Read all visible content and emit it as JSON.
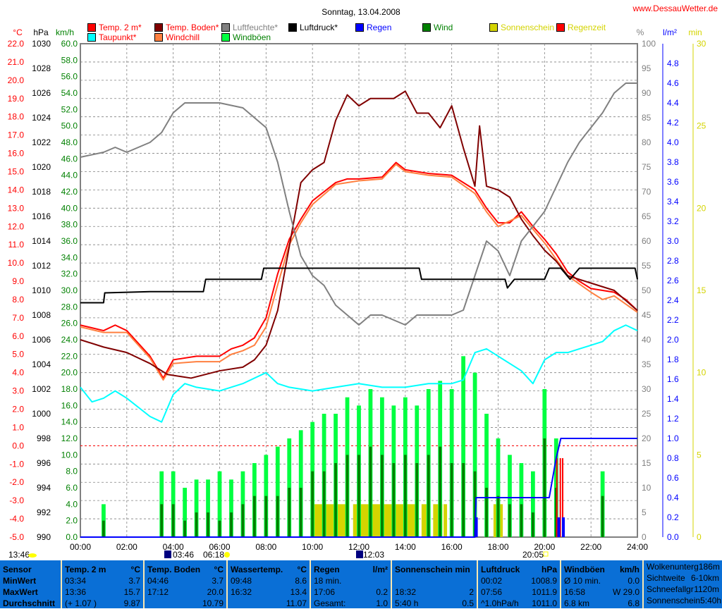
{
  "chart_data": {
    "type": "line",
    "title": "Sonntag, 13.04.2008",
    "site": "www.DessauWetter.de",
    "xlabel": "Uhrzeit",
    "xlim": [
      0,
      24
    ],
    "x_ticks": [
      "00:00",
      "02:00",
      "04:00",
      "06:00",
      "08:00",
      "10:00",
      "12:00",
      "14:00",
      "16:00",
      "18:00",
      "20:00",
      "22:00",
      "24:00"
    ],
    "axes": {
      "celsius": {
        "label": "°C",
        "range": [
          -5,
          22
        ],
        "ticks": [
          "22.0",
          "21.0",
          "20.0",
          "19.0",
          "18.0",
          "17.0",
          "16.0",
          "15.0",
          "14.0",
          "13.0",
          "12.0",
          "11.0",
          "10.0",
          "9.0",
          "8.0",
          "7.0",
          "6.0",
          "5.0",
          "4.0",
          "3.0",
          "2.0",
          "1.0",
          "0.0",
          "-1.0",
          "-2.0",
          "-3.0",
          "-4.0",
          "-5.0"
        ]
      },
      "hpa": {
        "label": "hPa",
        "range": [
          990,
          1030
        ],
        "ticks": [
          "1030",
          "1028",
          "1026",
          "1024",
          "1022",
          "1020",
          "1018",
          "1016",
          "1014",
          "1012",
          "1010",
          "1008",
          "1006",
          "1004",
          "1002",
          "1000",
          "998",
          "996",
          "994",
          "992",
          "990"
        ]
      },
      "kmh": {
        "label": "km/h",
        "range": [
          0,
          60
        ],
        "ticks": [
          "60.0",
          "58.0",
          "56.0",
          "54.0",
          "52.0",
          "50.0",
          "48.0",
          "46.0",
          "44.0",
          "42.0",
          "40.0",
          "38.0",
          "36.0",
          "34.0",
          "32.0",
          "30.0",
          "28.0",
          "26.0",
          "24.0",
          "22.0",
          "20.0",
          "18.0",
          "16.0",
          "14.0",
          "12.0",
          "10.0",
          "8.0",
          "6.0",
          "4.0",
          "2.0",
          "0.0"
        ]
      },
      "pct": {
        "label": "%",
        "range": [
          0,
          100
        ],
        "ticks": [
          "100",
          "95",
          "90",
          "85",
          "80",
          "75",
          "70",
          "65",
          "60",
          "55",
          "50",
          "45",
          "40",
          "35",
          "30",
          "25",
          "20",
          "15",
          "10",
          "5",
          "0"
        ]
      },
      "lm2": {
        "label": "l/m²",
        "range": [
          0,
          5
        ],
        "ticks": [
          "4.8",
          "4.6",
          "4.4",
          "4.2",
          "4.0",
          "3.8",
          "3.6",
          "3.4",
          "3.2",
          "3.0",
          "2.8",
          "2.6",
          "2.4",
          "2.2",
          "2.0",
          "1.8",
          "1.6",
          "1.4",
          "1.2",
          "1.0",
          "0.8",
          "0.6",
          "0.4",
          "0.2",
          "0.0"
        ]
      },
      "min": {
        "label": "min",
        "range": [
          0,
          30
        ],
        "ticks": [
          "30",
          "25",
          "20",
          "15",
          "10",
          "5",
          "0"
        ]
      }
    },
    "legend": [
      {
        "name": "Temp. 2 m*",
        "color": "#ff0000",
        "text_color": "#ff0000"
      },
      {
        "name": "Temp. Boden*",
        "color": "#800000",
        "text_color": "#ff0000"
      },
      {
        "name": "Luftfeuchte*",
        "color": "#808080",
        "text_color": "#808080"
      },
      {
        "name": "Luftdruck*",
        "color": "#000000",
        "text_color": "#000000"
      },
      {
        "name": "Regen",
        "color": "#0000ff",
        "text_color": "#0000ff"
      },
      {
        "name": "Wind",
        "color": "#008000",
        "text_color": "#008000"
      },
      {
        "name": "Sonnenschein",
        "color": "#d4d400",
        "text_color": "#d4d400"
      },
      {
        "name": "Regenzeit",
        "color": "#ff0000",
        "text_color": "#d4d400"
      },
      {
        "name": "Taupunkt*",
        "color": "#00ffff",
        "text_color": "#ff0000"
      },
      {
        "name": "Windchill",
        "color": "#ff8040",
        "text_color": "#ff0000"
      },
      {
        "name": "Windböen",
        "color": "#00ff40",
        "text_color": "#008000"
      }
    ],
    "series": [
      {
        "name": "Temp. 2 m",
        "axis": "celsius",
        "color": "#ff0000",
        "x": [
          0,
          1,
          1.5,
          2,
          3,
          3.57,
          4,
          5,
          6,
          6.5,
          7,
          7.5,
          8,
          8.5,
          9,
          9.5,
          10,
          11,
          11.5,
          12,
          13,
          13.6,
          14,
          15,
          16,
          17,
          17.5,
          18,
          18.5,
          19,
          19.5,
          20,
          20.5,
          21,
          21.5,
          22,
          23,
          23.5,
          24
        ],
        "y": [
          6.6,
          6.3,
          6.6,
          6.3,
          4.9,
          3.7,
          4.7,
          4.9,
          4.9,
          5.3,
          5.5,
          5.9,
          7.0,
          9.4,
          11.3,
          12.4,
          13.4,
          14.4,
          14.6,
          14.6,
          14.7,
          15.5,
          15.1,
          14.9,
          14.8,
          14.0,
          13.0,
          12.2,
          12.2,
          12.8,
          12.0,
          11.3,
          10.5,
          9.5,
          9.0,
          8.6,
          8.4,
          8.0,
          7.4
        ]
      },
      {
        "name": "Windchill",
        "axis": "celsius",
        "color": "#ff8040",
        "x": [
          0,
          1,
          2,
          3,
          3.57,
          4,
          5,
          6,
          6.5,
          7,
          7.5,
          8,
          8.5,
          9,
          9.5,
          10,
          11,
          12,
          13,
          13.6,
          14,
          15,
          16,
          17,
          17.5,
          18,
          19,
          20,
          21,
          22,
          22.5,
          23,
          24
        ],
        "y": [
          6.5,
          6.2,
          6.2,
          4.8,
          3.6,
          4.5,
          4.6,
          4.6,
          5.0,
          5.2,
          5.5,
          6.5,
          8.8,
          11.0,
          12.2,
          13.2,
          14.3,
          14.5,
          14.6,
          15.4,
          15.0,
          14.8,
          14.7,
          13.8,
          12.8,
          12.0,
          12.6,
          11.1,
          9.3,
          8.4,
          8.0,
          8.2,
          7.3
        ]
      },
      {
        "name": "Temp. Boden",
        "axis": "celsius",
        "color": "#800000",
        "x": [
          0,
          1,
          2,
          3,
          3.75,
          4.77,
          6,
          7,
          7.5,
          8,
          8.5,
          9,
          9.5,
          10,
          10.5,
          11,
          11.5,
          12,
          12.5,
          13,
          13.5,
          14,
          14.5,
          15,
          15.5,
          16,
          16.5,
          17,
          17.2,
          17.5,
          18,
          18.5,
          19,
          19.5,
          20,
          20.5,
          21,
          21.5,
          22,
          23,
          24
        ],
        "y": [
          5.8,
          5.4,
          5.1,
          4.5,
          3.9,
          3.7,
          4.1,
          4.3,
          4.7,
          5.5,
          7.4,
          10.9,
          14.4,
          15.1,
          15.5,
          17.8,
          19.2,
          18.6,
          19.0,
          19.0,
          19.0,
          19.4,
          18.2,
          18.2,
          17.4,
          18.6,
          16.3,
          14.2,
          17.5,
          14.2,
          14.0,
          13.6,
          12.4,
          11.5,
          10.7,
          10.1,
          9.3,
          9.1,
          8.9,
          8.5,
          7.4
        ]
      },
      {
        "name": "Taupunkt",
        "axis": "celsius",
        "color": "#00ffff",
        "x": [
          0,
          0.5,
          1,
          1.5,
          2,
          3,
          3.5,
          4,
          4.5,
          5,
          6,
          7,
          8,
          8.5,
          9,
          10,
          11,
          12,
          13,
          14,
          15,
          16,
          16.5,
          17,
          17.5,
          18,
          18.5,
          19,
          19.5,
          20,
          20.5,
          21,
          21.5,
          22,
          22.5,
          23,
          23.5,
          24
        ],
        "y": [
          3.2,
          2.4,
          2.6,
          3.0,
          2.6,
          1.6,
          1.3,
          2.8,
          3.4,
          3.2,
          3.0,
          3.4,
          4.0,
          3.4,
          3.2,
          3.0,
          3.2,
          3.4,
          3.2,
          3.2,
          3.4,
          3.4,
          3.6,
          5.1,
          5.3,
          4.9,
          4.5,
          4.1,
          3.4,
          4.7,
          5.1,
          5.1,
          5.3,
          5.5,
          5.7,
          6.3,
          6.6,
          6.3
        ]
      },
      {
        "name": "Luftfeuchte",
        "axis": "pct",
        "color": "#808080",
        "x": [
          0,
          1,
          1.5,
          2,
          3,
          3.5,
          4,
          4.5,
          5,
          6,
          7,
          7.5,
          8,
          8.5,
          9,
          9.5,
          10,
          10.5,
          11,
          11.5,
          12,
          12.5,
          13,
          13.5,
          14,
          14.5,
          15,
          16,
          16.5,
          17,
          17.5,
          18,
          18.5,
          19,
          19.5,
          20,
          20.5,
          21,
          21.5,
          22,
          22.5,
          23,
          23.5,
          24
        ],
        "y": [
          77,
          78,
          79,
          78,
          80,
          82,
          86,
          88,
          88,
          88,
          87,
          85,
          83,
          76,
          66,
          57,
          53,
          51,
          47,
          45,
          43,
          45,
          45,
          44,
          43,
          45,
          45,
          45,
          46,
          53,
          60,
          58,
          53,
          60,
          63,
          66,
          71,
          76,
          80,
          83,
          86,
          90,
          92,
          92
        ]
      },
      {
        "name": "Luftdruck",
        "axis": "hpa",
        "color": "#000000",
        "x": [
          0,
          1,
          1.05,
          3,
          5.3,
          5.4,
          7.8,
          7.9,
          14.6,
          14.7,
          18.3,
          18.4,
          18.7,
          20,
          20.2,
          20.7,
          21.1,
          21.5,
          23.9,
          24
        ],
        "y": [
          1009.0,
          1009.0,
          1009.8,
          1009.9,
          1009.9,
          1010.9,
          1010.9,
          1011.8,
          1011.8,
          1010.9,
          1010.9,
          1010.2,
          1010.9,
          1010.9,
          1011.8,
          1011.8,
          1010.9,
          1011.8,
          1011.8,
          1010.9
        ]
      },
      {
        "name": "Regen",
        "axis": "lm2",
        "color": "#0000ff",
        "x": [
          0,
          17.0,
          17.05,
          20.2,
          20.5,
          20.6,
          20.7,
          24
        ],
        "y": [
          0,
          0,
          0.4,
          0.4,
          0.8,
          0.9,
          1.0,
          1.0
        ]
      }
    ],
    "wind": {
      "x_step_hours": 0.5,
      "avg": [
        0,
        0,
        2,
        0,
        0,
        0,
        0,
        4,
        4,
        2,
        3,
        3,
        2,
        3,
        4,
        5,
        5,
        5,
        6,
        6,
        8,
        8,
        9,
        10,
        10,
        11,
        10,
        9,
        10,
        9,
        10,
        11,
        9,
        9,
        8,
        6,
        5,
        4,
        4,
        3,
        12,
        6,
        0,
        0,
        0,
        5,
        0,
        0,
        0
      ],
      "gust": [
        0,
        0,
        4,
        0,
        0,
        0,
        0,
        8,
        8,
        6,
        7,
        7,
        8,
        7,
        8,
        9,
        10,
        11,
        12,
        13,
        14,
        15,
        15,
        17,
        16,
        18,
        17,
        16,
        17,
        16,
        18,
        19,
        18,
        22,
        20,
        15,
        12,
        10,
        9,
        8,
        18,
        12,
        0,
        0,
        0,
        8,
        0,
        0,
        0
      ]
    },
    "sunshine": {
      "axis": "min",
      "blocks": [
        [
          10.0,
          11.55,
          2
        ],
        [
          11.75,
          14.55,
          2
        ],
        [
          14.7,
          14.95,
          2
        ],
        [
          15.2,
          15.6,
          2
        ],
        [
          15.65,
          15.8,
          2
        ],
        [
          17.8,
          18.2,
          2
        ]
      ]
    },
    "rain_time": [
      [
        20.5,
        20.55
      ],
      [
        20.65,
        20.7
      ],
      [
        20.75,
        20.8
      ]
    ],
    "rain_bars": [
      [
        17.0,
        0.2
      ],
      [
        20.55,
        0.2
      ],
      [
        20.75,
        0.2
      ]
    ],
    "zero_line_celsius": 0
  },
  "markers": {
    "day_length": "13:46",
    "moonrise": "03:46",
    "sunrise": "06:18",
    "moonset": "12:03",
    "sunset": "20:05"
  },
  "table": {
    "sensor": {
      "title": "Sensor",
      "rows": [
        "MinWert",
        "MaxWert",
        "Durchschnitt"
      ]
    },
    "temp2m": {
      "title": "Temp. 2 m",
      "unit": "°C",
      "min": [
        "03:34",
        "3.7"
      ],
      "max": [
        "13:36",
        "15.7"
      ],
      "avg": [
        "(+ 1.07 )",
        "9.87"
      ]
    },
    "boden": {
      "title": "Temp. Boden",
      "unit": "°C",
      "min": [
        "04:46",
        "3.7"
      ],
      "max": [
        "17:12",
        "20.0"
      ],
      "avg": [
        "",
        "10.79"
      ]
    },
    "wasser": {
      "title": "Wassertemp.",
      "unit": "°C",
      "min": [
        "09:48",
        "8.6"
      ],
      "max": [
        "16:32",
        "13.4"
      ],
      "avg": [
        "",
        "11.07"
      ]
    },
    "regen": {
      "title": "Regen",
      "unit": "l/m²",
      "min": [
        "18 min.",
        ""
      ],
      "max": [
        "17:06",
        "0.2"
      ],
      "avg": [
        "Gesamt:",
        "1.0"
      ]
    },
    "sonne": {
      "title": "Sonnenschein min",
      "min": [
        "",
        ""
      ],
      "max": [
        "18:32",
        "2"
      ],
      "avg": [
        "5:40 h",
        "0.5"
      ]
    },
    "druck": {
      "title": "Luftdruck",
      "unit": "hPa",
      "min": [
        "00:02",
        "1008.9"
      ],
      "max": [
        "07:56",
        "1011.9"
      ],
      "avg": [
        "^1.0hPa/h",
        "1011.0"
      ]
    },
    "boeen": {
      "title": "Windböen",
      "unit": "km/h",
      "min": [
        "Ø 10 min.",
        "0.0"
      ],
      "max": [
        "16:58",
        "W 29.0"
      ],
      "avg": [
        "6.8 km",
        "6.8"
      ]
    },
    "extra": [
      [
        "Wolkenunterg",
        "186m"
      ],
      [
        "Sichtweite",
        "6-10km"
      ],
      [
        "Schneefallgr",
        "1120m"
      ],
      [
        "Sonnenschein",
        "5:40h"
      ]
    ]
  }
}
